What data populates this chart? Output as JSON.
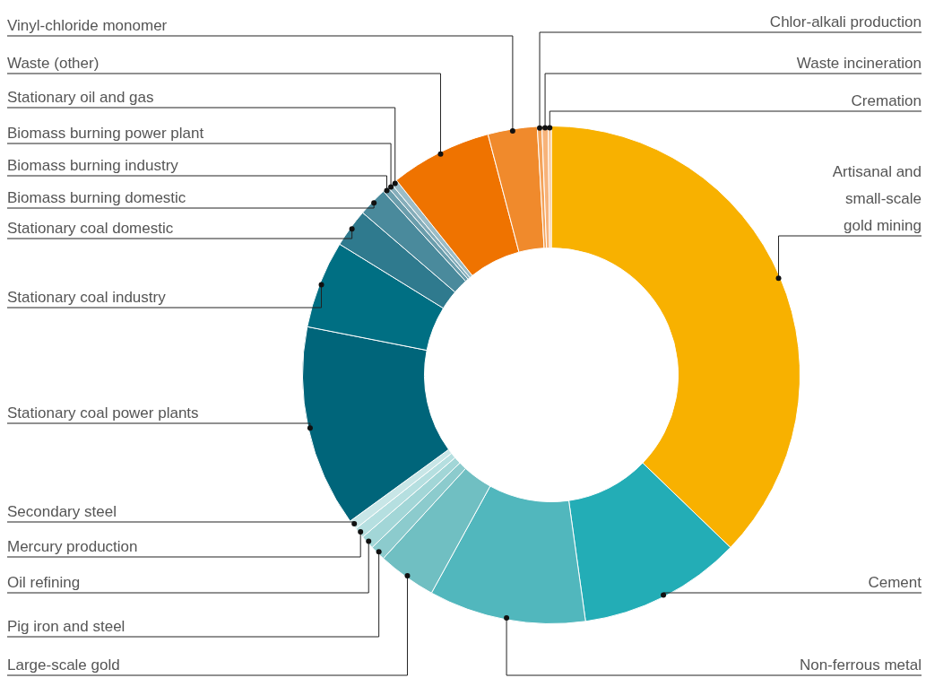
{
  "chart_data": {
    "type": "donut",
    "categories": [
      "Artisanal and small-scale gold mining",
      "Cement",
      "Non-ferrous metal",
      "Large-scale gold",
      "Pig iron and steel",
      "Oil refining",
      "Mercury production",
      "Secondary steel",
      "Stationary coal power plants",
      "Stationary coal industry",
      "Stationary coal domestic",
      "Biomass burning domestic",
      "Biomass burning industry",
      "Biomass burning power plant",
      "Stationary oil and gas",
      "Waste (other)",
      "Vinyl-chloride monomer",
      "Chlor-alkali production",
      "Waste incineration",
      "Cremation"
    ],
    "values": [
      37.2,
      10.6,
      10.2,
      3.8,
      1.0,
      0.9,
      0.7,
      0.6,
      13.1,
      5.7,
      2.5,
      1.9,
      0.4,
      0.3,
      0.4,
      6.6,
      3.2,
      0.3,
      0.4,
      0.2
    ],
    "colors": [
      "#f8b100",
      "#23adb6",
      "#51b7bd",
      "#70bfc2",
      "#8ccbcd",
      "#a2d6d7",
      "#b5dfe0",
      "#c8e6e7",
      "#00657a",
      "#006f83",
      "#2f7a8e",
      "#4a8a9c",
      "#6a9dac",
      "#85adba",
      "#9cbdc7",
      "#ef7300",
      "#f08a2c",
      "#f4a35a",
      "#f7b37a",
      "#f9c494"
    ]
  }
}
